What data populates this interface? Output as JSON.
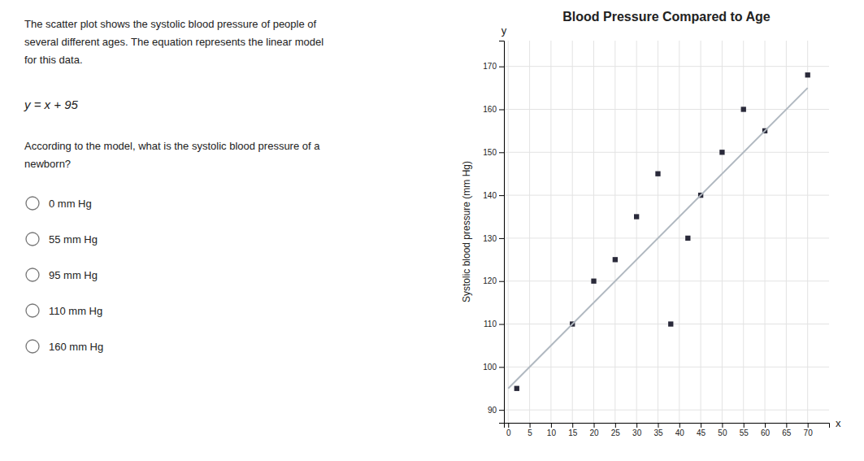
{
  "chart_data": {
    "type": "scatter",
    "title": "Blood Pressure Compared to Age",
    "xlabel": "x",
    "ylabel": "Systolic blood pressure (mm Hg)",
    "annotations": [
      "y"
    ],
    "description": [
      "The scatter plot shows the systolic blood pressure of people of",
      "several different ages. The equation represents the linear model",
      "for this data."
    ],
    "equation": "y = x + 95",
    "question": [
      "According to the model, what is the systolic blood pressure of a",
      "newborn?"
    ],
    "options": [
      "0 mm Hg",
      "55 mm Hg",
      "95 mm Hg",
      "110 mm Hg",
      "160 mm Hg"
    ],
    "series": [
      {
        "type": "scatter",
        "marker": "square",
        "color": "#2a2a3a",
        "x": [
          2,
          15,
          20,
          25,
          30,
          35,
          38,
          42,
          45,
          50,
          55,
          60,
          70
        ],
        "values": [
          95,
          110,
          120,
          125,
          135,
          145,
          110,
          130,
          140,
          150,
          160,
          155,
          168
        ]
      },
      {
        "type": "line",
        "color": "#b0b8c0",
        "x": [
          0,
          70
        ],
        "values": [
          95,
          165
        ]
      }
    ],
    "xlim": [
      -1,
      75
    ],
    "ylim": [
      87,
      176
    ],
    "xticks": [
      0,
      5,
      10,
      15,
      20,
      25,
      30,
      35,
      40,
      45,
      50,
      55,
      60,
      65,
      70
    ],
    "yticks": [
      90,
      100,
      110,
      120,
      130,
      140,
      150,
      160,
      170
    ],
    "grid": true
  }
}
